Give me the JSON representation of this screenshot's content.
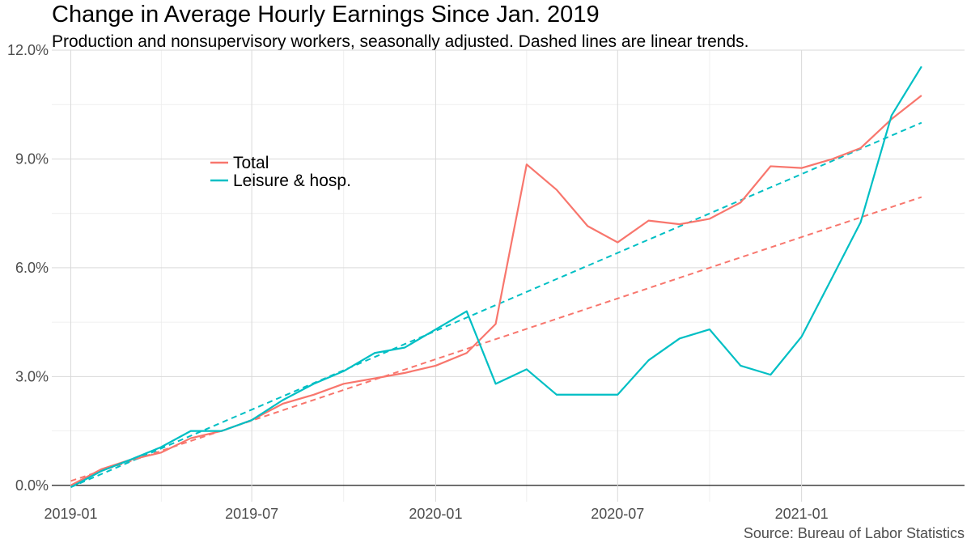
{
  "chart_data": {
    "type": "line",
    "title": "Change in Average Hourly Earnings Since Jan. 2019",
    "subtitle": "Production and nonsupervisory workers, seasonally adjusted. Dashed lines are linear trends.",
    "caption": "Source: Bureau of Labor Statistics",
    "xlabel": "",
    "ylabel": "",
    "x": [
      "2019-01",
      "2019-02",
      "2019-03",
      "2019-04",
      "2019-05",
      "2019-06",
      "2019-07",
      "2019-08",
      "2019-09",
      "2019-10",
      "2019-11",
      "2019-12",
      "2020-01",
      "2020-02",
      "2020-03",
      "2020-04",
      "2020-05",
      "2020-06",
      "2020-07",
      "2020-08",
      "2020-09",
      "2020-10",
      "2020-11",
      "2020-12",
      "2021-01",
      "2021-02",
      "2021-03",
      "2021-04",
      "2021-05"
    ],
    "x_ticks": [
      "2019-01",
      "2019-07",
      "2020-01",
      "2020-07",
      "2021-01"
    ],
    "x_range": [
      "2018-12-13",
      "2021-06-13"
    ],
    "ylim": [
      -0.45,
      12.0
    ],
    "y_ticks": [
      0,
      3,
      6,
      9,
      12
    ],
    "y_tick_labels": [
      "0.0%",
      "3.0%",
      "6.0%",
      "9.0%",
      "12.0%"
    ],
    "y_unit": "%",
    "grid": true,
    "legend": {
      "placement": "top-left inside",
      "entries": [
        "Total",
        "Leisure & hosp."
      ]
    },
    "series": [
      {
        "name": "Total",
        "color": "#F8766D",
        "values": [
          0.0,
          0.45,
          0.7,
          0.9,
          1.3,
          1.5,
          1.8,
          2.25,
          2.5,
          2.8,
          2.95,
          3.1,
          3.3,
          3.65,
          4.45,
          8.85,
          8.15,
          7.15,
          6.7,
          7.3,
          7.2,
          7.35,
          7.8,
          8.8,
          8.75,
          9.0,
          9.3,
          10.1,
          10.75
        ]
      },
      {
        "name": "Leisure & hosp.",
        "color": "#00BFC4",
        "values": [
          -0.05,
          0.4,
          0.7,
          1.05,
          1.5,
          1.5,
          1.8,
          2.35,
          2.8,
          3.15,
          3.65,
          3.8,
          4.3,
          4.8,
          2.8,
          3.2,
          2.5,
          2.5,
          2.5,
          3.45,
          4.05,
          4.3,
          3.3,
          3.05,
          4.1,
          5.75,
          7.25,
          10.2,
          11.55
        ]
      }
    ],
    "trends": [
      {
        "series": "Total",
        "color": "#F8766D",
        "dashed": true,
        "start": 0.12,
        "end": 7.95
      },
      {
        "series": "Leisure & hosp.",
        "color": "#00BFC4",
        "dashed": true,
        "start": -0.05,
        "end": 10.0
      }
    ]
  }
}
